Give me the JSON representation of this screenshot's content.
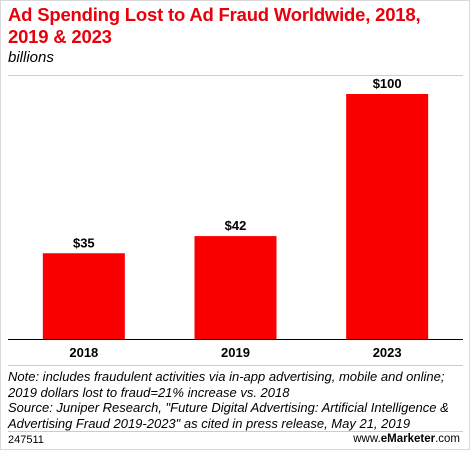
{
  "chart_data": {
    "type": "bar",
    "title": "Ad Spending Lost to Ad Fraud Worldwide, 2018, 2019 & 2023",
    "subtitle": "billions",
    "categories": [
      "2018",
      "2019",
      "2023"
    ],
    "values": [
      35,
      42,
      100
    ],
    "data_labels": [
      "$35",
      "$42",
      "$100"
    ],
    "ylim": [
      0,
      100
    ],
    "grid": false,
    "legend": "none"
  },
  "colors": {
    "title": "#e8000b",
    "bar": "#fa0000",
    "axis": "#000000",
    "rule": "#cccccc"
  },
  "notes": {
    "note": "Note: includes fraudulent activities via in-app advertising, mobile and online; 2019 dollars lost to fraud=21% increase vs. 2018",
    "source": "Source: Juniper Research, \"Future Digital Advertising: Artificial Intelligence & Advertising Fraud 2019-2023\" as cited in press release, May 21, 2019"
  },
  "footer": {
    "chart_id": "247511",
    "brand_prefix": "www.",
    "brand_name": "eMarketer",
    "brand_suffix": ".com"
  }
}
